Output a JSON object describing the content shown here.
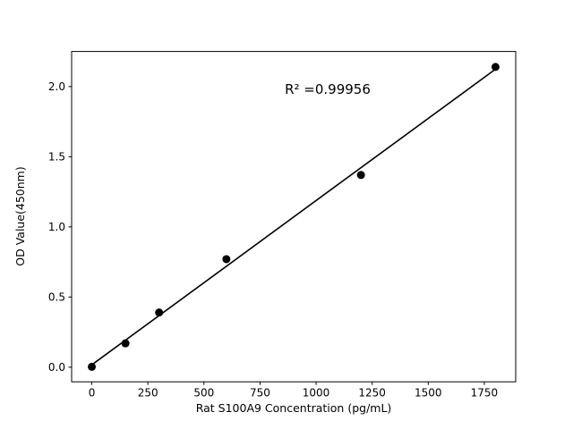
{
  "figure": {
    "background": "#ffffff",
    "foreground": "#000000"
  },
  "chart_data": {
    "type": "scatter",
    "title": "",
    "xlabel": "Rat S100A9 Concentration (pg/mL)",
    "ylabel": "OD Value(450nm)",
    "x": [
      0,
      150,
      300,
      600,
      1200,
      1800
    ],
    "y": [
      0.003,
      0.17,
      0.39,
      0.77,
      1.37,
      2.14
    ],
    "fit_line": {
      "x": [
        0,
        1800
      ],
      "y": [
        0.017,
        2.124
      ]
    },
    "annotation": {
      "text": "R² =0.99956",
      "x": 1050,
      "y": 1.98
    },
    "xlim": [
      -90,
      1890
    ],
    "ylim": [
      -0.104,
      2.25
    ],
    "x_ticks": [
      0,
      250,
      500,
      750,
      1000,
      1250,
      1500,
      1750
    ],
    "x_tick_labels": [
      "0",
      "250",
      "500",
      "750",
      "1000",
      "1250",
      "1500",
      "1750"
    ],
    "y_ticks": [
      0.0,
      0.5,
      1.0,
      1.5,
      2.0
    ],
    "y_tick_labels": [
      "0.0",
      "0.5",
      "1.0",
      "1.5",
      "2.0"
    ],
    "grid": false,
    "legend": null,
    "marker_color": "#000000",
    "line_color": "#000000"
  }
}
